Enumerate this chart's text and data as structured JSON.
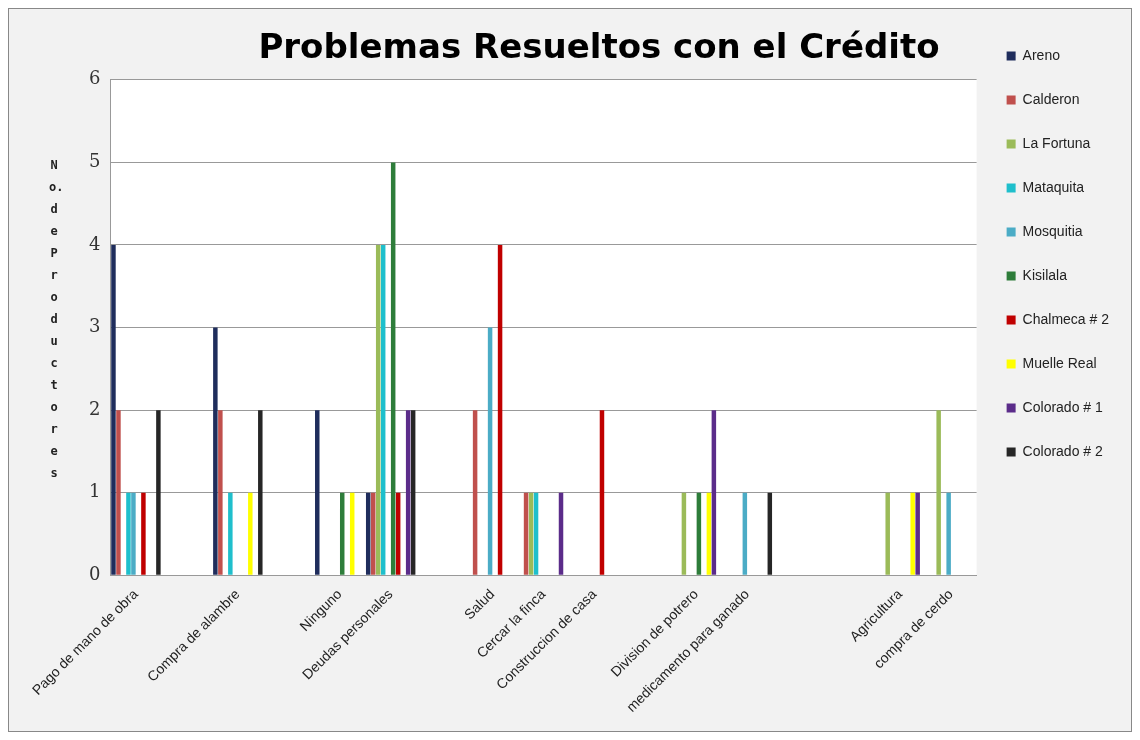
{
  "chart_data": {
    "type": "bar",
    "title": "Problemas Resueltos con el Crédito",
    "ylabel": "No. de Productores",
    "categories": [
      "Pago de mano de obra",
      null,
      "Compra de alambre",
      null,
      "Ninguno",
      "Deudas personales",
      null,
      "Salud",
      "Cercar la finca",
      "Construccion de casa",
      null,
      "Division de potrero",
      "medicamento para ganado",
      null,
      null,
      "Agricultura",
      "compra de cerdo"
    ],
    "series": [
      {
        "name": "Areno",
        "color": "#1f2d5c",
        "values": [
          4,
          null,
          3,
          null,
          2,
          1,
          null,
          0,
          0,
          0,
          null,
          0,
          0,
          null,
          null,
          0,
          0
        ]
      },
      {
        "name": "Calderon",
        "color": "#c0504d",
        "values": [
          2,
          null,
          2,
          null,
          0,
          1,
          null,
          2,
          1,
          0,
          null,
          0,
          0,
          null,
          null,
          0,
          0
        ]
      },
      {
        "name": "La Fortuna",
        "color": "#9bbb59",
        "values": [
          0,
          null,
          0,
          null,
          0,
          4,
          null,
          0,
          1,
          0,
          null,
          1,
          0,
          null,
          null,
          1,
          2
        ]
      },
      {
        "name": "Mataquita",
        "color": "#1fbfcc",
        "values": [
          1,
          null,
          1,
          null,
          0,
          4,
          null,
          0,
          1,
          0,
          null,
          0,
          0,
          null,
          null,
          0,
          0
        ]
      },
      {
        "name": "Mosquitia",
        "color": "#4bacc6",
        "values": [
          1,
          null,
          0,
          null,
          0,
          0,
          null,
          3,
          0,
          0,
          null,
          0,
          1,
          null,
          null,
          0,
          1
        ]
      },
      {
        "name": "Kisilala",
        "color": "#2e7d3a",
        "values": [
          0,
          null,
          0,
          null,
          1,
          5,
          null,
          0,
          0,
          0,
          null,
          1,
          0,
          null,
          null,
          0,
          0
        ]
      },
      {
        "name": "Chalmeca # 2",
        "color": "#c00000",
        "values": [
          1,
          null,
          0,
          null,
          0,
          1,
          null,
          4,
          0,
          2,
          null,
          0,
          0,
          null,
          null,
          0,
          0
        ]
      },
      {
        "name": "Muelle Real",
        "color": "#ffff00",
        "values": [
          0,
          null,
          1,
          null,
          1,
          0,
          null,
          0,
          0,
          0,
          null,
          1,
          0,
          null,
          null,
          1,
          0
        ]
      },
      {
        "name": "Colorado # 1",
        "color": "#5b2c8a",
        "values": [
          0,
          null,
          0,
          null,
          0,
          2,
          null,
          0,
          1,
          0,
          null,
          2,
          0,
          null,
          null,
          1,
          0
        ]
      },
      {
        "name": "Colorado # 2",
        "color": "#262626",
        "values": [
          2,
          null,
          2,
          null,
          0,
          2,
          null,
          0,
          0,
          0,
          null,
          0,
          1,
          null,
          null,
          0,
          0
        ]
      }
    ],
    "ylim": [
      0,
      6
    ],
    "yticks": [
      0,
      1,
      2,
      3,
      4,
      5,
      6
    ],
    "grid": "y",
    "legend": "right"
  }
}
